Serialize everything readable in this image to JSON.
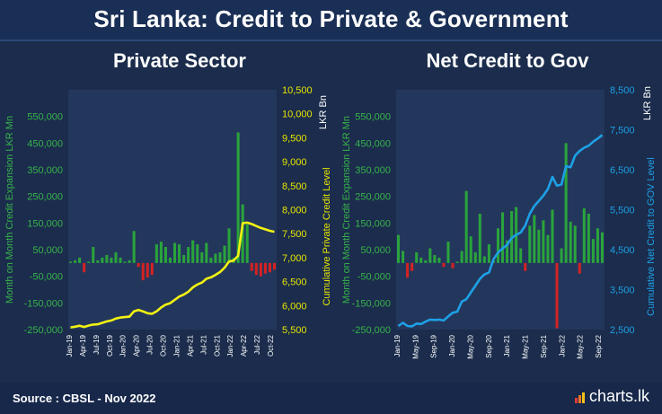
{
  "title": "Sri Lanka: Credit to Private & Government",
  "footer": {
    "source": "Source : CBSL - Nov 2022",
    "brand": "charts.lk"
  },
  "colors": {
    "bar_pos": "#2aa43c",
    "bar_neg": "#d42222",
    "private_line": "#f3f312",
    "gov_line": "#1ea0e6",
    "left_axis": "#37b34a",
    "right_axis_private": "#e6e600",
    "right_axis_gov": "#1ea0e6"
  },
  "chart_data": [
    {
      "type": "bar",
      "title": "Private Sector",
      "ylabel": "Month on Month Credit Expansion LKR Mn",
      "y2label": "Cumulative Private Credit Level",
      "y2unit": "LKR Bn",
      "ylim": [
        -250000,
        650000
      ],
      "yticks": [
        550000,
        450000,
        350000,
        250000,
        150000,
        50000,
        -50000,
        -150000,
        -250000
      ],
      "ytick_labels": [
        "550,000",
        "450,000",
        "350,000",
        "250,000",
        "150,000",
        "50,000",
        "-50,000",
        "-150,000",
        "-250,000"
      ],
      "y2lim": [
        5500,
        10500
      ],
      "y2ticks": [
        10500,
        10000,
        9500,
        9000,
        8500,
        8000,
        7500,
        7000,
        6500,
        6000,
        5500
      ],
      "y2tick_labels": [
        "10,500",
        "10,000",
        "9,500",
        "9,000",
        "8,500",
        "8,000",
        "7,500",
        "7,000",
        "6,500",
        "6,000",
        "5,500"
      ],
      "x_labels": [
        "Jan-19",
        "Apr-19",
        "Jul-19",
        "Oct-19",
        "Jan-20",
        "Apr-20",
        "Jul-20",
        "Oct-20",
        "Jan-21",
        "Apr-21",
        "Jul-21",
        "Oct-21",
        "Jan-22",
        "Apr-22",
        "Jul-22",
        "Oct-22"
      ],
      "series": [
        {
          "kind": "bar",
          "values": [
            5000,
            10000,
            20000,
            -35000,
            5000,
            60000,
            10000,
            20000,
            30000,
            20000,
            40000,
            20000,
            5000,
            10000,
            120000,
            -15000,
            -65000,
            -55000,
            -45000,
            70000,
            80000,
            60000,
            20000,
            75000,
            70000,
            30000,
            60000,
            85000,
            70000,
            40000,
            75000,
            20000,
            35000,
            40000,
            65000,
            130000,
            20000,
            490000,
            220000,
            145000,
            -30000,
            -45000,
            -50000,
            -40000,
            -35000,
            -25000
          ]
        },
        {
          "kind": "line",
          "axis": "y2",
          "values": [
            5545,
            5560,
            5580,
            5555,
            5585,
            5605,
            5610,
            5640,
            5670,
            5690,
            5730,
            5750,
            5760,
            5770,
            5880,
            5910,
            5880,
            5840,
            5830,
            5880,
            5960,
            6020,
            6050,
            6120,
            6190,
            6230,
            6290,
            6380,
            6440,
            6480,
            6560,
            6590,
            6640,
            6700,
            6790,
            6920,
            6940,
            7040,
            7720,
            7730,
            7700,
            7660,
            7620,
            7590,
            7560,
            7540
          ]
        }
      ]
    },
    {
      "type": "bar",
      "title": "Net Credit to Gov",
      "ylabel": "Month on Month Credit Expansion LKR Mn",
      "y2label": "Cumulative Net Credit to GOV Level",
      "y2unit": "LKR Bn",
      "ylim": [
        -250000,
        650000
      ],
      "yticks": [
        550000,
        450000,
        350000,
        250000,
        150000,
        50000,
        -50000,
        -150000,
        -250000
      ],
      "ytick_labels": [
        "550,000",
        "450,000",
        "350,000",
        "250,000",
        "150,000",
        "50,000",
        "-50,000",
        "-150,000",
        "-250,000"
      ],
      "y2lim": [
        2500,
        8500
      ],
      "y2ticks": [
        8500,
        7500,
        6500,
        5500,
        4500,
        3500,
        2500
      ],
      "y2tick_labels": [
        "8,500",
        "7,500",
        "6,500",
        "5,500",
        "4,500",
        "3,500",
        "2,500"
      ],
      "x_labels": [
        "Jan-19",
        "May-19",
        "Sep-19",
        "Jan-20",
        "May-20",
        "Sep-20",
        "Jan-21",
        "May-21",
        "Sep-21",
        "Jan-22",
        "May-22",
        "Sep-22"
      ],
      "series": [
        {
          "kind": "bar",
          "values": [
            105000,
            45000,
            -55000,
            -30000,
            40000,
            20000,
            10000,
            55000,
            30000,
            20000,
            -15000,
            80000,
            -20000,
            5000,
            45000,
            270000,
            100000,
            40000,
            185000,
            25000,
            70000,
            10000,
            130000,
            190000,
            85000,
            195000,
            210000,
            55000,
            -30000,
            140000,
            180000,
            125000,
            160000,
            105000,
            200000,
            -245000,
            55000,
            450000,
            155000,
            140000,
            -40000,
            205000,
            185000,
            90000,
            130000,
            115000
          ]
        },
        {
          "kind": "line",
          "axis": "y2",
          "values": [
            2590,
            2670,
            2590,
            2580,
            2650,
            2640,
            2700,
            2750,
            2740,
            2750,
            2730,
            2830,
            2920,
            2950,
            3200,
            3260,
            3430,
            3600,
            3770,
            3880,
            3930,
            4260,
            4430,
            4530,
            4620,
            4790,
            4870,
            4930,
            5100,
            5400,
            5590,
            5720,
            5850,
            6020,
            6320,
            6100,
            6130,
            6590,
            6560,
            6850,
            6970,
            7050,
            7100,
            7200,
            7280,
            7370
          ]
        }
      ]
    }
  ]
}
